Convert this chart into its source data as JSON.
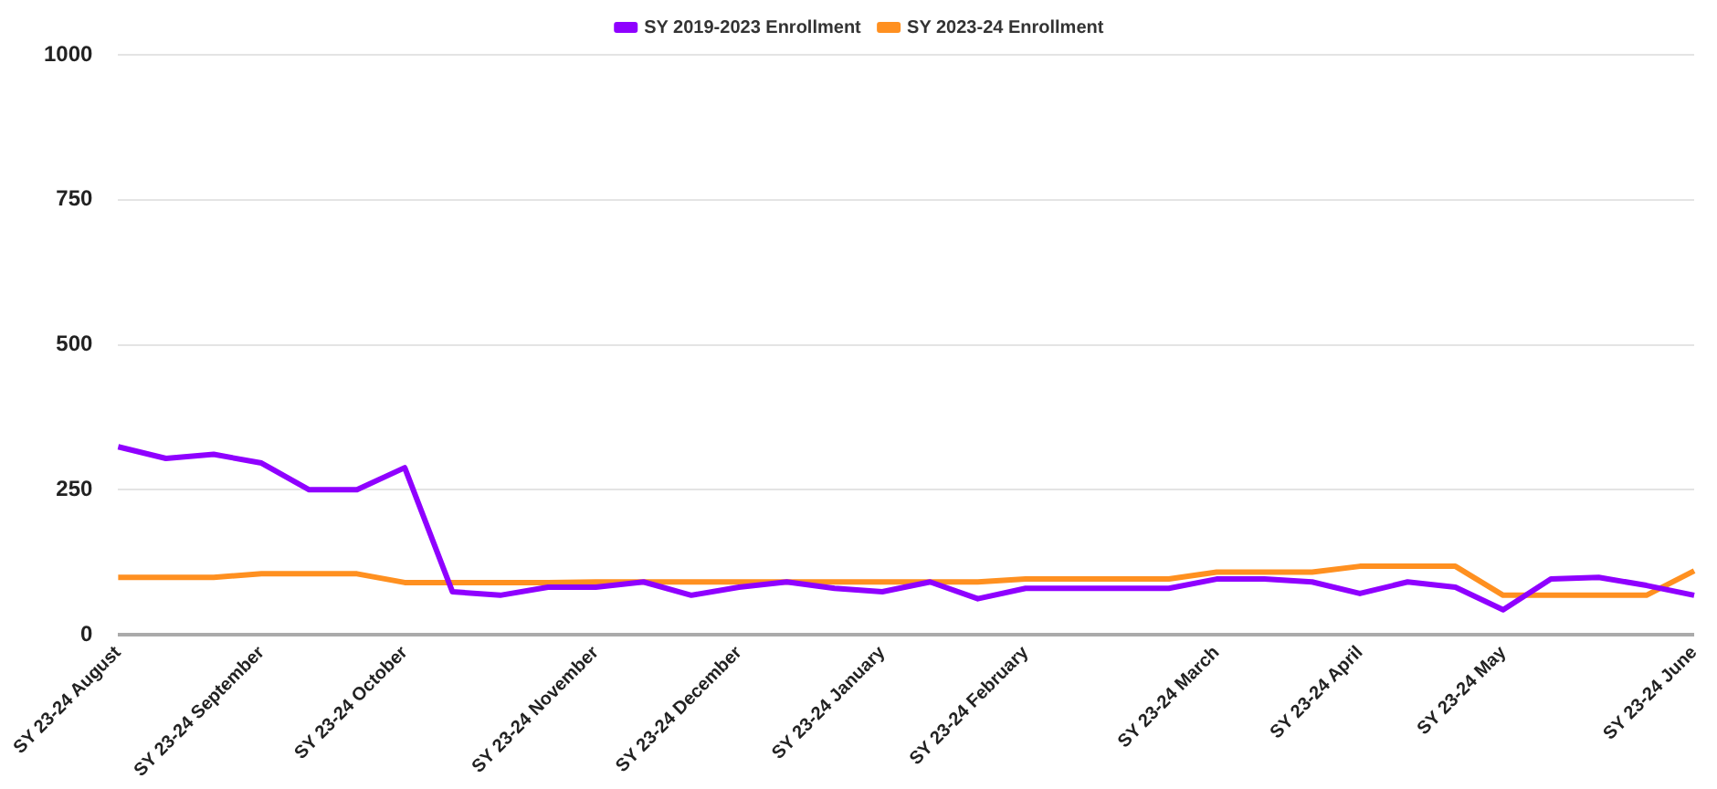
{
  "chart_data": {
    "type": "line",
    "categories": [
      "SY 23-24 August",
      null,
      null,
      "SY 23-24 September",
      null,
      null,
      "SY 23-24 October",
      null,
      null,
      null,
      "SY 23-24 November",
      null,
      null,
      "SY 23-24 December",
      null,
      null,
      "SY 23-24 January",
      null,
      null,
      "SY 23-24 February",
      null,
      null,
      null,
      "SY 23-24 March",
      null,
      null,
      "SY 23-24 April",
      null,
      null,
      "SY 23-24 May",
      null,
      null,
      null,
      "SY 23-24 June"
    ],
    "series": [
      {
        "name": "SY 2019-2023 Enrollment",
        "color": "#8f00ff",
        "values": [
          324,
          304,
          311,
          296,
          250,
          250,
          288,
          74,
          68,
          82,
          82,
          91,
          68,
          82,
          91,
          80,
          74,
          91,
          62,
          80,
          80,
          80,
          80,
          96,
          96,
          91,
          71,
          91,
          82,
          43,
          96,
          99,
          85,
          68
        ]
      },
      {
        "name": "SY 2023-24 Enrollment",
        "color": "#ff9020",
        "values": [
          99,
          99,
          99,
          105,
          105,
          105,
          90,
          90,
          90,
          90,
          91,
          91,
          91,
          91,
          91,
          91,
          91,
          91,
          91,
          96,
          96,
          96,
          96,
          108,
          108,
          108,
          118,
          118,
          118,
          68,
          68,
          68,
          68,
          110
        ]
      }
    ],
    "ylim": [
      0,
      1000
    ],
    "yticks": [
      0,
      250,
      500,
      750,
      1000
    ],
    "grid": "y",
    "legend": "top",
    "marker": "none",
    "line_style": "solid"
  }
}
